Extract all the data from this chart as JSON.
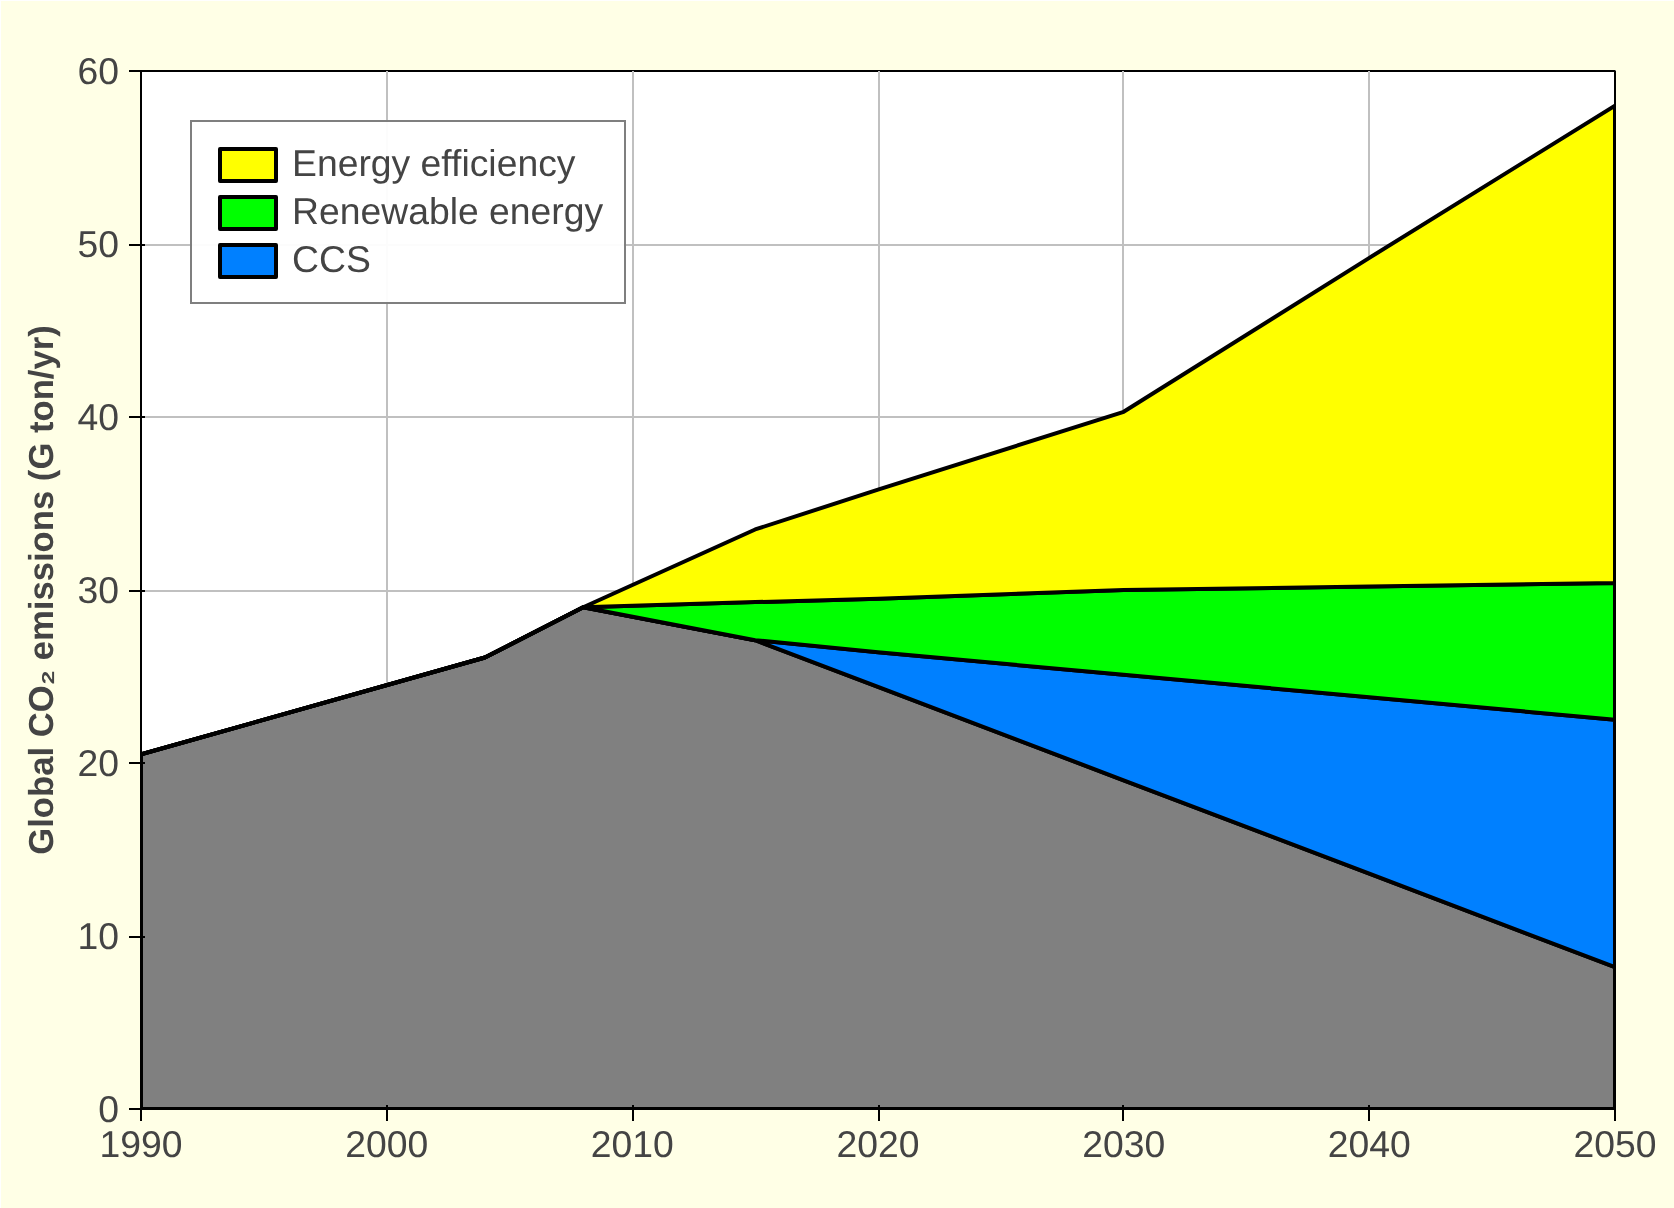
{
  "chart_data": {
    "type": "area",
    "stacked": true,
    "ylabel": "Global CO₂ emissions (G ton/yr)",
    "x": [
      1990,
      2004,
      2008,
      2015,
      2020,
      2030,
      2040,
      2050
    ],
    "series": [
      {
        "color": "#808080",
        "values": [
          20.5,
          26.1,
          29.0,
          27.1,
          24.4,
          19.0,
          13.6,
          8.2
        ]
      },
      {
        "name": "CCS",
        "color": "#0080ff",
        "values": [
          0,
          0,
          0,
          0,
          2.0,
          6.1,
          10.2,
          14.3
        ]
      },
      {
        "name": "Renewable energy",
        "color": "#00ff00",
        "values": [
          0,
          0,
          0,
          2.2,
          3.1,
          4.9,
          6.4,
          7.9
        ]
      },
      {
        "name": "Energy efficiency",
        "color": "#ffff00",
        "values": [
          0,
          0,
          0,
          4.2,
          6.3,
          10.3,
          19.0,
          27.6
        ]
      }
    ],
    "xlim": [
      1990,
      2050
    ],
    "ylim": [
      0,
      60
    ],
    "xticks": [
      1990,
      2000,
      2010,
      2020,
      2030,
      2040,
      2050
    ],
    "yticks": [
      0,
      10,
      20,
      30,
      40,
      50,
      60
    ],
    "grid": true,
    "legend": "top left"
  }
}
